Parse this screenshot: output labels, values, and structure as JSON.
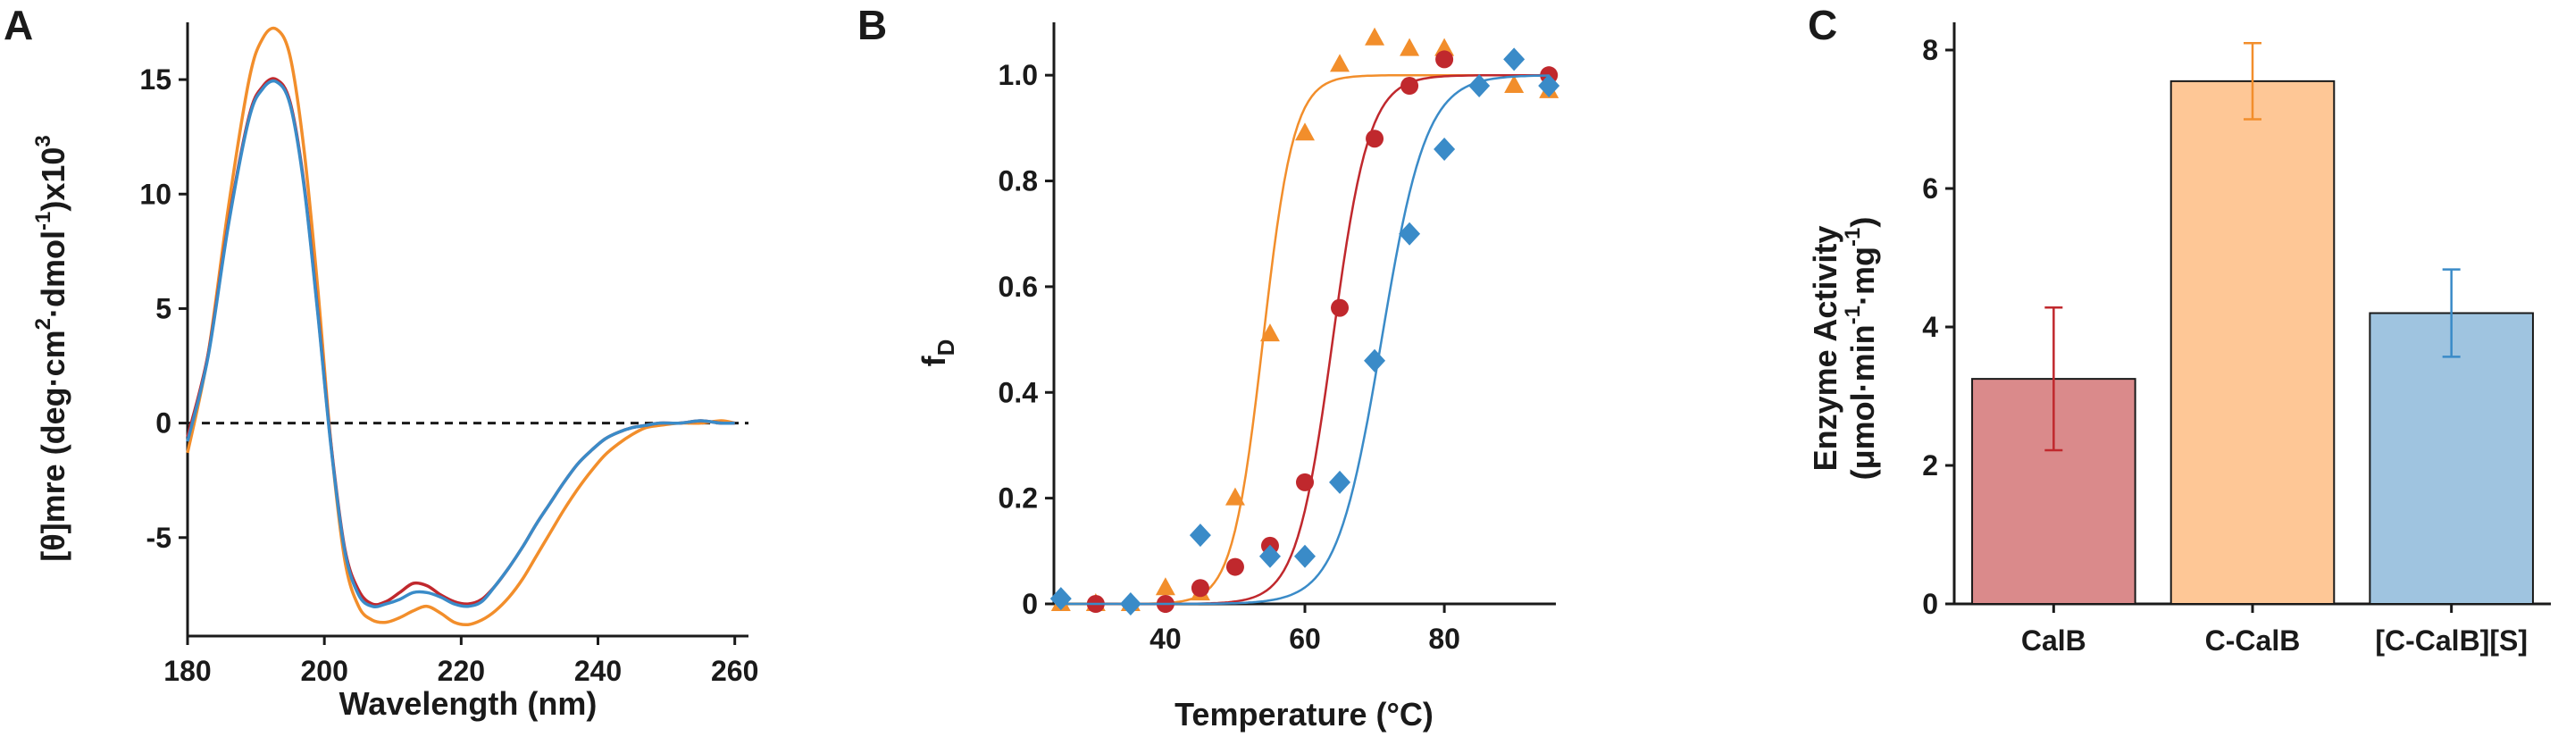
{
  "panels": {
    "A": {
      "letter": "A"
    },
    "B": {
      "letter": "B"
    },
    "C": {
      "letter": "C"
    }
  },
  "chart_data": [
    {
      "panel": "A",
      "type": "line",
      "xlabel": "Wavelength (nm)",
      "ylabel_parts": {
        "main": "[θ]mre (deg·cm",
        "exp1": "2",
        "mid": "·dmol",
        "exp2": "-1",
        "end": ")x10",
        "exp3": "3"
      },
      "xlim": [
        180,
        262
      ],
      "ylim": [
        -9.3,
        17.5
      ],
      "xticks": [
        180,
        200,
        220,
        240,
        260
      ],
      "xtick_labels": [
        "180",
        "200",
        "220",
        "240",
        "260"
      ],
      "yticks": [
        -5,
        0,
        5,
        10,
        15
      ],
      "ytick_labels": [
        "-5",
        "0",
        "5",
        "10",
        "15"
      ],
      "zero_line": {
        "y": 0,
        "style": "dashed"
      },
      "series": [
        {
          "color": "#f28e2b",
          "x": [
            180,
            183,
            186,
            189,
            191,
            193,
            195,
            197,
            199,
            201,
            203,
            205,
            207,
            209,
            211,
            213,
            215,
            217,
            219,
            221,
            223,
            225,
            227,
            229,
            231,
            233,
            235,
            237,
            239,
            241,
            243,
            245,
            247,
            249,
            252,
            255,
            258,
            260
          ],
          "y": [
            -1.3,
            3.0,
            9.5,
            15.0,
            16.8,
            17.2,
            16.0,
            12.0,
            6.0,
            -1.0,
            -6.0,
            -8.0,
            -8.6,
            -8.7,
            -8.5,
            -8.2,
            -8.0,
            -8.3,
            -8.7,
            -8.8,
            -8.6,
            -8.2,
            -7.6,
            -6.8,
            -5.8,
            -4.8,
            -3.8,
            -2.9,
            -2.1,
            -1.4,
            -0.9,
            -0.5,
            -0.2,
            -0.1,
            0.0,
            0.0,
            0.1,
            0.0
          ]
        },
        {
          "color": "#c0282d",
          "x": [
            180,
            183,
            186,
            189,
            191,
            193,
            195,
            197,
            199,
            201,
            203,
            205,
            207,
            209,
            211,
            213,
            215,
            217,
            219,
            221,
            223,
            225,
            227,
            229,
            231,
            233,
            235,
            237,
            239,
            241,
            243,
            245,
            247,
            249,
            252,
            255,
            258,
            260
          ],
          "y": [
            -0.6,
            3.0,
            8.8,
            13.4,
            14.7,
            15.0,
            14.0,
            10.5,
            5.0,
            -1.0,
            -5.5,
            -7.3,
            -7.9,
            -7.8,
            -7.4,
            -7.0,
            -7.1,
            -7.5,
            -7.8,
            -7.9,
            -7.7,
            -7.1,
            -6.3,
            -5.4,
            -4.4,
            -3.5,
            -2.6,
            -1.8,
            -1.2,
            -0.7,
            -0.4,
            -0.2,
            -0.1,
            0.0,
            0.0,
            0.1,
            0.0,
            0.0
          ]
        },
        {
          "color": "#3a8bc8",
          "x": [
            180,
            183,
            186,
            189,
            191,
            193,
            195,
            197,
            199,
            201,
            203,
            205,
            207,
            209,
            211,
            213,
            215,
            217,
            219,
            221,
            223,
            225,
            227,
            229,
            231,
            233,
            235,
            237,
            239,
            241,
            243,
            245,
            247,
            249,
            252,
            255,
            258,
            260
          ],
          "y": [
            -0.8,
            2.9,
            8.7,
            13.3,
            14.6,
            14.9,
            13.9,
            10.4,
            4.9,
            -1.1,
            -5.6,
            -7.5,
            -8.0,
            -7.9,
            -7.7,
            -7.4,
            -7.4,
            -7.6,
            -7.9,
            -8.0,
            -7.8,
            -7.1,
            -6.3,
            -5.4,
            -4.4,
            -3.5,
            -2.6,
            -1.8,
            -1.2,
            -0.7,
            -0.4,
            -0.2,
            -0.1,
            0.0,
            0.0,
            0.1,
            0.0,
            0.0
          ]
        }
      ]
    },
    {
      "panel": "B",
      "type": "scatter",
      "xlabel": "Temperature (°C)",
      "ylabel_parts": {
        "main": "f",
        "sub": "D"
      },
      "xlim": [
        24,
        96
      ],
      "ylim": [
        0,
        1.1
      ],
      "xticks": [
        40,
        60,
        80
      ],
      "xtick_labels": [
        "40",
        "60",
        "80"
      ],
      "yticks": [
        0,
        0.2,
        0.4,
        0.6,
        0.8,
        1.0
      ],
      "ytick_labels": [
        "0",
        "0.2",
        "0.4",
        "0.6",
        "0.8",
        "1.0"
      ],
      "series": [
        {
          "color": "#f28e2b",
          "marker": "triangle",
          "fit_tm": 54.0,
          "fit_width": 2.2,
          "x": [
            25,
            30,
            35,
            40,
            45,
            50,
            55,
            60,
            65,
            70,
            75,
            80,
            90,
            95
          ],
          "y": [
            0.0,
            0.0,
            0.0,
            0.03,
            0.02,
            0.2,
            0.51,
            0.89,
            1.02,
            1.07,
            1.05,
            1.05,
            0.98,
            0.97
          ]
        },
        {
          "color": "#c0282d",
          "marker": "circle",
          "fit_tm": 64.0,
          "fit_width": 2.6,
          "x": [
            30,
            40,
            45,
            50,
            55,
            60,
            65,
            70,
            75,
            80,
            95
          ],
          "y": [
            0.0,
            0.0,
            0.03,
            0.07,
            0.11,
            0.23,
            0.56,
            0.88,
            0.98,
            1.03,
            1.0
          ]
        },
        {
          "color": "#3a8bc8",
          "marker": "diamond",
          "fit_tm": 71.0,
          "fit_width": 3.2,
          "x": [
            25,
            35,
            45,
            55,
            60,
            65,
            70,
            75,
            80,
            85,
            90,
            95
          ],
          "y": [
            0.01,
            0.0,
            0.13,
            0.09,
            0.09,
            0.23,
            0.46,
            0.7,
            0.86,
            0.98,
            1.03,
            0.98
          ]
        }
      ]
    },
    {
      "panel": "C",
      "type": "bar",
      "ylabel_line1": "Enzyme Activity",
      "ylabel_line2_parts": {
        "open": "(μmol·min",
        "exp1": "-1",
        "mid": "·mg",
        "exp2": "-1",
        "close": ")"
      },
      "categories": [
        "CalB",
        "C-CalB",
        "[C-CalB][S]"
      ],
      "values": [
        3.25,
        7.55,
        4.2
      ],
      "errors": [
        1.03,
        0.55,
        0.63
      ],
      "fill_colors": [
        "#da8a8b",
        "#fec796",
        "#9fc4e0"
      ],
      "error_colors": [
        "#c0282d",
        "#f28e2b",
        "#3a8bc8"
      ],
      "ylim": [
        0,
        8.4
      ],
      "yticks": [
        0,
        2,
        4,
        6,
        8
      ],
      "ytick_labels": [
        "0",
        "2",
        "4",
        "6",
        "8"
      ]
    }
  ]
}
